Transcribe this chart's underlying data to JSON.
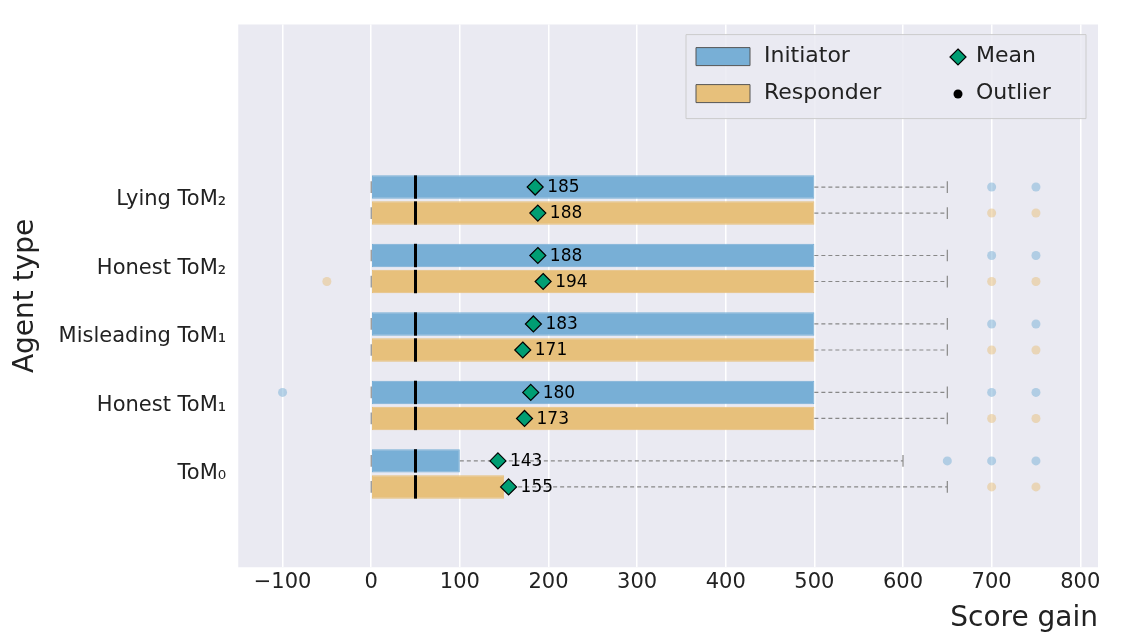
{
  "chart_data": {
    "type": "box",
    "orientation": "horizontal",
    "xlabel": "Score gain",
    "ylabel": "Agent type",
    "categories": [
      "Lying ToM₂",
      "Honest ToM₂",
      "Misleading ToM₁",
      "Honest ToM₁",
      "ToM₀"
    ],
    "series": [
      {
        "name": "Initiator",
        "color": "#78afd6",
        "boxes": [
          {
            "low": 0,
            "q1": 0,
            "median": 50,
            "q3": 500,
            "high": 650,
            "mean": 185,
            "outliers": [
              700,
              750
            ]
          },
          {
            "low": 0,
            "q1": 0,
            "median": 50,
            "q3": 500,
            "high": 650,
            "mean": 188,
            "outliers": [
              700,
              750
            ]
          },
          {
            "low": 0,
            "q1": 0,
            "median": 50,
            "q3": 500,
            "high": 650,
            "mean": 183,
            "outliers": [
              700,
              750
            ]
          },
          {
            "low": 0,
            "q1": 0,
            "median": 50,
            "q3": 500,
            "high": 650,
            "mean": 180,
            "outliers": [
              -100,
              700,
              750
            ]
          },
          {
            "low": 0,
            "q1": 0,
            "median": 50,
            "q3": 100,
            "high": 600,
            "mean": 143,
            "outliers": [
              650,
              700,
              750
            ]
          }
        ]
      },
      {
        "name": "Responder",
        "color": "#e7c07b",
        "boxes": [
          {
            "low": 0,
            "q1": 0,
            "median": 50,
            "q3": 500,
            "high": 650,
            "mean": 188,
            "outliers": [
              700,
              750
            ]
          },
          {
            "low": 0,
            "q1": 0,
            "median": 50,
            "q3": 500,
            "high": 650,
            "mean": 194,
            "outliers": [
              -50,
              700,
              750
            ]
          },
          {
            "low": 0,
            "q1": 0,
            "median": 50,
            "q3": 500,
            "high": 650,
            "mean": 171,
            "outliers": [
              700,
              750
            ]
          },
          {
            "low": 0,
            "q1": 0,
            "median": 50,
            "q3": 500,
            "high": 650,
            "mean": 173,
            "outliers": [
              700,
              750
            ]
          },
          {
            "low": 0,
            "q1": 0,
            "median": 50,
            "q3": 150,
            "high": 650,
            "mean": 155,
            "outliers": [
              700,
              750
            ]
          }
        ]
      }
    ],
    "xlim": [
      -150,
      820
    ],
    "xticks": [
      -100,
      0,
      100,
      200,
      300,
      400,
      500,
      600,
      700,
      800
    ],
    "grid": "x",
    "legend": "top right",
    "annotations": [
      "Mean",
      "Outlier",
      "185",
      "188",
      "188",
      "194",
      "183",
      "171",
      "180",
      "173",
      "143",
      "155"
    ]
  }
}
